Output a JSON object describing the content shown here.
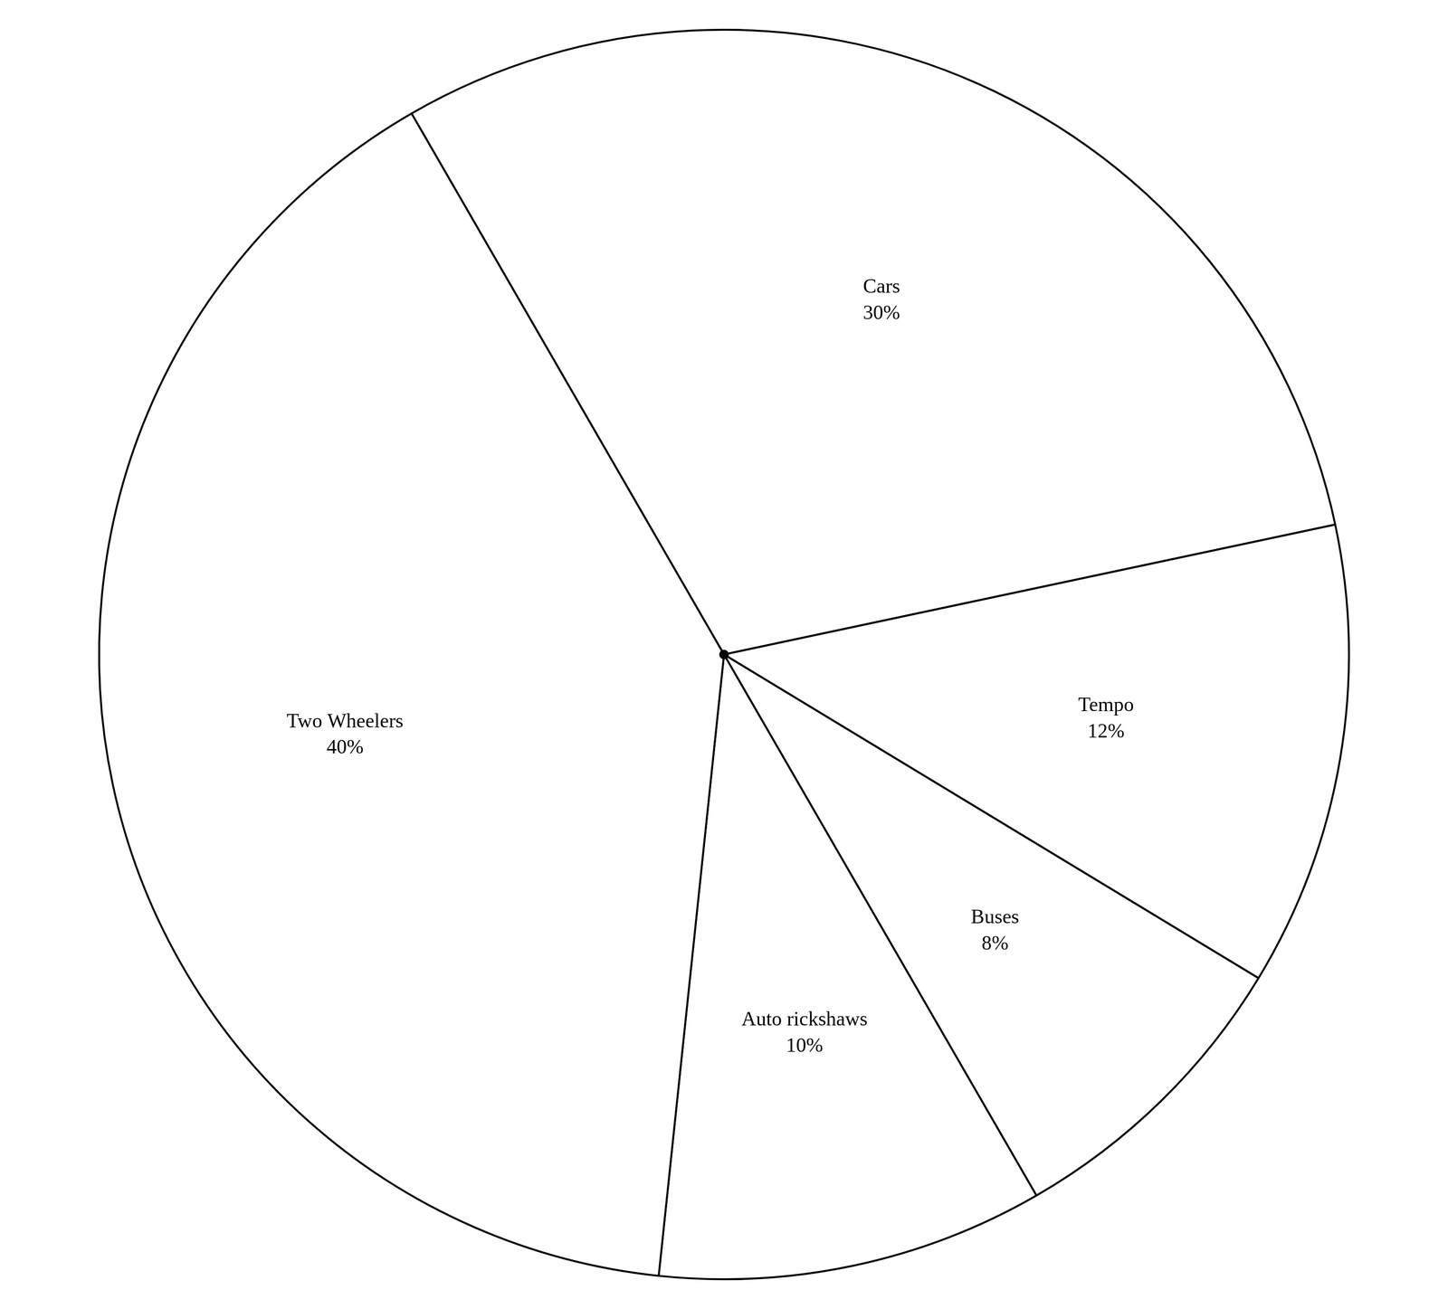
{
  "chart_data": {
    "type": "pie",
    "categories": [
      "Cars",
      "Tempo",
      "Buses",
      "Auto rickshaws",
      "Two Wheelers"
    ],
    "values": [
      30,
      12,
      8,
      10,
      40
    ],
    "value_labels": [
      "30%",
      "12%",
      "8%",
      "10%",
      "40%"
    ],
    "colors": [
      "#ffffff",
      "#ffffff",
      "#ffffff",
      "#ffffff",
      "#ffffff"
    ],
    "data_labels": true
  }
}
